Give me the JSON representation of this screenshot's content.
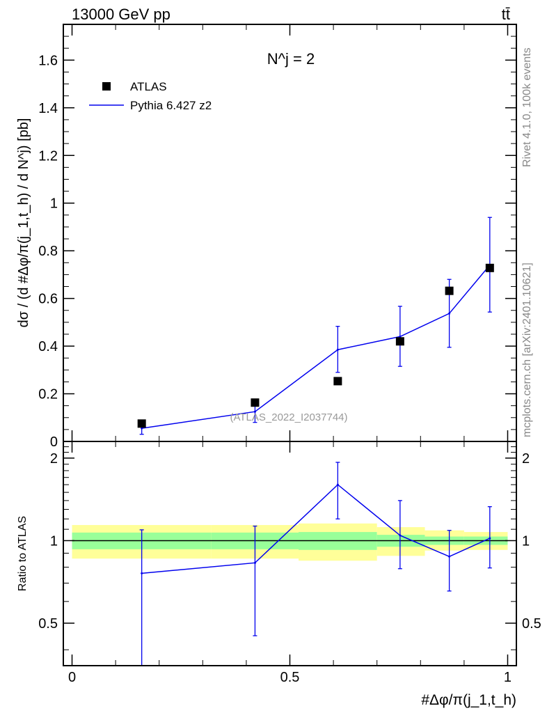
{
  "header": {
    "energy_label": "13000 GeV pp",
    "process_label": "tt̄"
  },
  "side_text": {
    "rivet": "Rivet 4.1.0,  100k events",
    "mcplots": "mcplots.cern.ch [arXiv:2401.10621]"
  },
  "colors": {
    "data": "#000000",
    "mc": "#0000ee",
    "band_inner": "#99ff99",
    "band_outer": "#ffff99",
    "watermark": "#999999"
  },
  "chart_data": [
    {
      "name": "main",
      "type": "scatter",
      "annotation": "N^j = 2",
      "watermark": "(ATLAS_2022_I2037744)",
      "ylabel": "dσ / (d #Δφ/π(j_1,t_h) / d N^j) [pb]",
      "ylim": [
        0,
        1.75
      ],
      "xlim": [
        -0.02,
        1.02
      ],
      "y_ticks": [
        0,
        0.2,
        0.4,
        0.6,
        0.8,
        1,
        1.2,
        1.4,
        1.6
      ],
      "y_tick_labels": [
        "0",
        "0.2",
        "0.4",
        "0.6",
        "0.8",
        "1",
        "1.2",
        "1.4",
        "1.6"
      ],
      "legend": [
        {
          "label": "ATLAS",
          "style": "marker"
        },
        {
          "label": "Pythia 6.427 z2",
          "style": "line"
        }
      ],
      "series": [
        {
          "name": "ATLAS",
          "x": [
            0.16,
            0.42,
            0.61,
            0.753,
            0.866,
            0.959
          ],
          "y": [
            0.075,
            0.163,
            0.253,
            0.42,
            0.632,
            0.728
          ],
          "yerr": [
            0.0,
            0.0,
            0.0,
            0.0,
            0.0,
            0.0
          ]
        },
        {
          "name": "Pythia 6.427 z2",
          "x": [
            0.16,
            0.42,
            0.61,
            0.753,
            0.866,
            0.959
          ],
          "y": [
            0.055,
            0.125,
            0.385,
            0.44,
            0.537,
            0.74
          ],
          "ylow": [
            0.03,
            0.08,
            0.29,
            0.315,
            0.395,
            0.543
          ],
          "yhigh": [
            0.08,
            0.175,
            0.483,
            0.567,
            0.68,
            0.94
          ]
        }
      ]
    },
    {
      "name": "ratio",
      "type": "line",
      "ylabel": "Ratio to ATLAS",
      "xlabel": "#Δφ/π(j_1,t_h)",
      "ylim": [
        0.35,
        2.3
      ],
      "xlim": [
        -0.02,
        1.02
      ],
      "y_ticks": [
        0.5,
        1,
        2
      ],
      "y_tick_labels": [
        "0.5",
        "1",
        "2"
      ],
      "x_ticks": [
        0,
        0.5,
        1
      ],
      "x_tick_labels": [
        "0",
        "0.5",
        "1"
      ],
      "bands": [
        {
          "xlo": 0.0,
          "xhi": 0.32,
          "inner": [
            0.93,
            1.07
          ],
          "outer": [
            0.86,
            1.14
          ]
        },
        {
          "xlo": 0.32,
          "xhi": 0.52,
          "inner": [
            0.93,
            1.07
          ],
          "outer": [
            0.86,
            1.14
          ]
        },
        {
          "xlo": 0.52,
          "xhi": 0.7,
          "inner": [
            0.925,
            1.075
          ],
          "outer": [
            0.845,
            1.155
          ]
        },
        {
          "xlo": 0.7,
          "xhi": 0.81,
          "inner": [
            0.95,
            1.05
          ],
          "outer": [
            0.88,
            1.12
          ]
        },
        {
          "xlo": 0.81,
          "xhi": 0.9,
          "inner": [
            0.965,
            1.035
          ],
          "outer": [
            0.92,
            1.09
          ]
        },
        {
          "xlo": 0.9,
          "xhi": 1.0,
          "inner": [
            0.965,
            1.035
          ],
          "outer": [
            0.925,
            1.075
          ]
        }
      ],
      "series": [
        {
          "name": "Pythia 6.427 z2 / ATLAS",
          "x": [
            0.16,
            0.42,
            0.61,
            0.753,
            0.866,
            0.959
          ],
          "y": [
            0.76,
            0.83,
            1.6,
            1.045,
            0.875,
            1.02
          ],
          "ylow": [
            0.35,
            0.45,
            1.2,
            0.79,
            0.655,
            0.795
          ],
          "yhigh": [
            1.095,
            1.13,
            1.93,
            1.4,
            1.09,
            1.33
          ]
        }
      ]
    }
  ]
}
